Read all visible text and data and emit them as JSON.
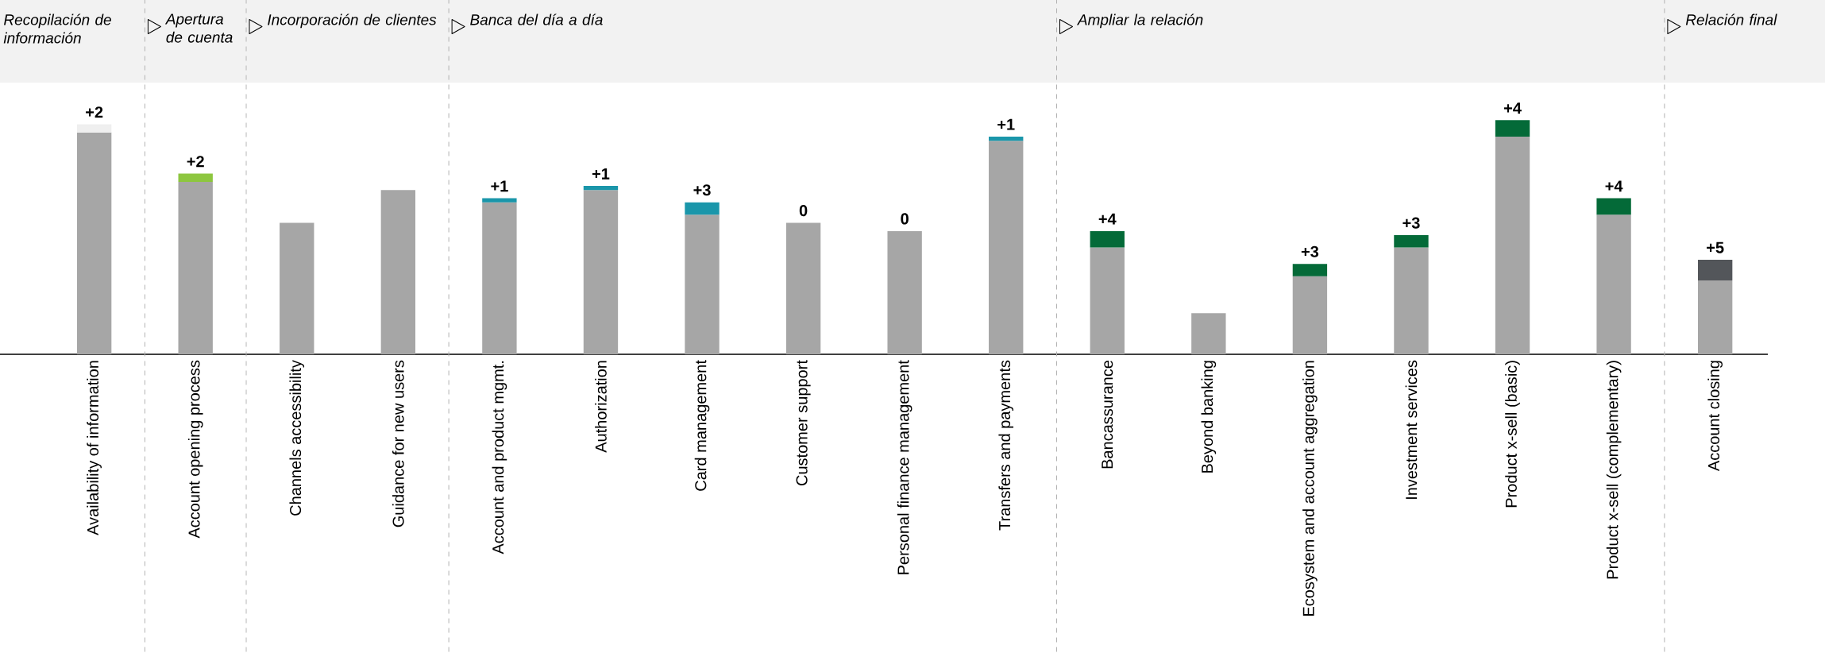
{
  "chart_data": {
    "type": "bar",
    "stacked": true,
    "categories": [
      "Availability of information",
      "Account opening process",
      "Channels accessibility",
      "Guidance for new users",
      "Account and product mgmt.",
      "Authorization",
      "Card management",
      "Customer support",
      "Personal finance management",
      "Transfers and payments",
      "Bancassurance",
      "Beyond banking",
      "Ecosystem and account aggregation",
      "Investment services",
      "Product x-sell (basic)",
      "Product x-sell (complementary)",
      "Account closing"
    ],
    "series": [
      {
        "color": "#a6a6a6",
        "values": [
          54,
          42,
          32,
          40,
          37,
          40,
          34,
          32,
          30,
          52,
          26,
          10,
          19,
          26,
          53,
          34,
          18
        ]
      },
      {
        "colors": [
          "#efefef",
          "#8dc63f",
          "#1a96aa",
          "#1a96aa",
          "#1a96aa",
          "#1a96aa",
          "#1a96aa",
          "#1a96aa",
          "#1a96aa",
          "#1a96aa",
          "#046a38",
          "#046a38",
          "#046a38",
          "#046a38",
          "#046a38",
          "#046a38",
          "#53565a"
        ],
        "values": [
          2,
          2,
          null,
          null,
          1,
          1,
          3,
          0,
          0,
          1,
          4,
          null,
          3,
          3,
          4,
          4,
          5
        ],
        "value_labels": [
          "+2",
          "+2",
          null,
          null,
          "+1",
          "+1",
          "+3",
          "0",
          "0",
          "+1",
          "+4",
          null,
          "+3",
          "+3",
          "+4",
          "+4",
          "+5"
        ]
      }
    ],
    "annotations": [
      "Recopilación de información",
      "Apertura de cuenta",
      "Incorporación de clientes",
      "Banca del día a día",
      "Ampliar la relación",
      "Relación final"
    ]
  }
}
